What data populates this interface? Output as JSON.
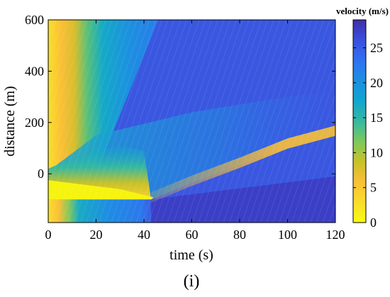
{
  "chart_data": {
    "type": "heatmap",
    "xlabel": "time (s)",
    "ylabel": "distance (m)",
    "xlim": [
      0,
      120
    ],
    "ylim": [
      -190,
      600
    ],
    "xticks": [
      0,
      20,
      40,
      60,
      80,
      100,
      120
    ],
    "yticks": [
      0,
      200,
      400,
      600
    ],
    "grid": false,
    "colormap": "parula",
    "colorbar": {
      "title": "velocity (m/s)",
      "range": [
        0,
        29
      ],
      "ticks": [
        0,
        5,
        10,
        15,
        20,
        25
      ],
      "placement": "right"
    },
    "features": {
      "road_end_position_m": -100,
      "wave_end_time_s": 43,
      "queue_front": [
        [
          43,
          -100
        ],
        [
          60,
          -35
        ],
        [
          80,
          35
        ],
        [
          100,
          110
        ],
        [
          120,
          160
        ]
      ],
      "colors": [
        "#f9fb0e",
        "#fbbf37",
        "#36b8a0",
        "#1d8fe1",
        "#3b4fde",
        "#3f2ea8"
      ]
    }
  },
  "caption": "(i)"
}
